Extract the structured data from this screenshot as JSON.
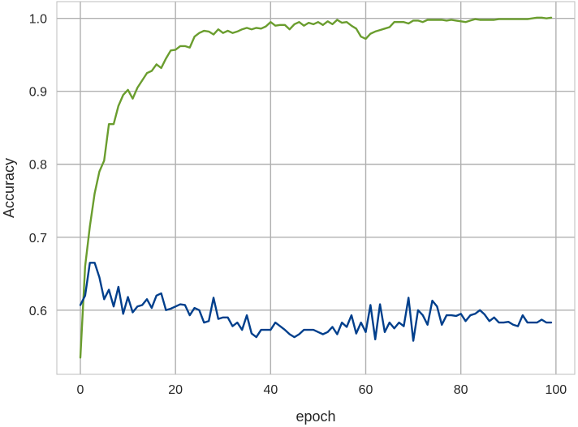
{
  "chart_data": {
    "type": "line",
    "title": "",
    "xlabel": "epoch",
    "ylabel": "Accuracy",
    "xlim": [
      -4.95,
      103.95
    ],
    "ylim": [
      0.512,
      1.023
    ],
    "grid": true,
    "x_ticks": [
      0,
      20,
      40,
      60,
      80,
      100
    ],
    "y_ticks": [
      0.6,
      0.7,
      0.8,
      0.9,
      1.0
    ],
    "x_tick_labels": [
      "0",
      "20",
      "40",
      "60",
      "80",
      "100"
    ],
    "y_tick_labels": [
      "0.6",
      "0.7",
      "0.8",
      "0.9",
      "1.0"
    ],
    "colors": {
      "series_0": "#6a9d2e",
      "series_1": "#003f8c",
      "grid": "#b0b0b0",
      "axes_edge": "#bdbdbd"
    },
    "series": [
      {
        "color": "#6a9d2e",
        "x": [
          0,
          1,
          2,
          3,
          4,
          5,
          6,
          7,
          8,
          9,
          10,
          11,
          12,
          13,
          14,
          15,
          16,
          17,
          18,
          19,
          20,
          21,
          22,
          23,
          24,
          25,
          26,
          27,
          28,
          29,
          30,
          31,
          32,
          33,
          34,
          35,
          36,
          37,
          38,
          39,
          40,
          41,
          42,
          43,
          44,
          45,
          46,
          47,
          48,
          49,
          50,
          51,
          52,
          53,
          54,
          55,
          56,
          57,
          58,
          59,
          60,
          61,
          62,
          63,
          64,
          65,
          66,
          67,
          68,
          69,
          70,
          71,
          72,
          73,
          74,
          75,
          76,
          77,
          78,
          79,
          80,
          81,
          82,
          83,
          84,
          85,
          86,
          87,
          88,
          89,
          90,
          91,
          92,
          93,
          94,
          95,
          96,
          97,
          98,
          99
        ],
        "values": [
          0.535,
          0.66,
          0.715,
          0.76,
          0.79,
          0.805,
          0.855,
          0.855,
          0.88,
          0.895,
          0.902,
          0.89,
          0.905,
          0.915,
          0.925,
          0.928,
          0.937,
          0.932,
          0.945,
          0.956,
          0.957,
          0.962,
          0.962,
          0.96,
          0.975,
          0.98,
          0.983,
          0.982,
          0.978,
          0.985,
          0.98,
          0.983,
          0.98,
          0.982,
          0.985,
          0.987,
          0.985,
          0.987,
          0.986,
          0.989,
          0.995,
          0.99,
          0.991,
          0.991,
          0.985,
          0.992,
          0.995,
          0.99,
          0.994,
          0.992,
          0.995,
          0.991,
          0.996,
          0.992,
          0.998,
          0.994,
          0.995,
          0.99,
          0.986,
          0.975,
          0.972,
          0.979,
          0.982,
          0.984,
          0.986,
          0.988,
          0.995,
          0.995,
          0.995,
          0.993,
          0.997,
          0.997,
          0.995,
          0.998,
          0.998,
          0.998,
          0.998,
          0.997,
          0.998,
          0.997,
          0.996,
          0.995,
          0.997,
          0.999,
          0.998,
          0.998,
          0.998,
          0.998,
          0.999,
          0.999,
          0.999,
          0.999,
          0.999,
          0.999,
          0.999,
          1.0,
          1.001,
          1.001,
          1.0,
          1.001
        ]
      },
      {
        "color": "#003f8c",
        "x": [
          0,
          1,
          2,
          3,
          4,
          5,
          6,
          7,
          8,
          9,
          10,
          11,
          12,
          13,
          14,
          15,
          16,
          17,
          18,
          19,
          20,
          21,
          22,
          23,
          24,
          25,
          26,
          27,
          28,
          29,
          30,
          31,
          32,
          33,
          34,
          35,
          36,
          37,
          38,
          39,
          40,
          41,
          42,
          43,
          44,
          45,
          46,
          47,
          48,
          49,
          50,
          51,
          52,
          53,
          54,
          55,
          56,
          57,
          58,
          59,
          60,
          61,
          62,
          63,
          64,
          65,
          66,
          67,
          68,
          69,
          70,
          71,
          72,
          73,
          74,
          75,
          76,
          77,
          78,
          79,
          80,
          81,
          82,
          83,
          84,
          85,
          86,
          87,
          88,
          89,
          90,
          91,
          92,
          93,
          94,
          95,
          96,
          97,
          98,
          99
        ],
        "values": [
          0.607,
          0.62,
          0.665,
          0.665,
          0.645,
          0.615,
          0.628,
          0.605,
          0.632,
          0.595,
          0.618,
          0.597,
          0.605,
          0.607,
          0.615,
          0.603,
          0.62,
          0.623,
          0.6,
          0.602,
          0.605,
          0.608,
          0.607,
          0.593,
          0.603,
          0.6,
          0.583,
          0.585,
          0.617,
          0.588,
          0.59,
          0.59,
          0.578,
          0.583,
          0.573,
          0.593,
          0.568,
          0.563,
          0.573,
          0.573,
          0.573,
          0.583,
          0.578,
          0.573,
          0.567,
          0.563,
          0.567,
          0.573,
          0.573,
          0.573,
          0.57,
          0.567,
          0.57,
          0.577,
          0.567,
          0.583,
          0.577,
          0.593,
          0.568,
          0.583,
          0.57,
          0.607,
          0.56,
          0.608,
          0.57,
          0.583,
          0.575,
          0.583,
          0.578,
          0.617,
          0.558,
          0.6,
          0.593,
          0.58,
          0.613,
          0.605,
          0.58,
          0.593,
          0.593,
          0.592,
          0.595,
          0.585,
          0.593,
          0.595,
          0.6,
          0.594,
          0.585,
          0.59,
          0.583,
          0.583,
          0.584,
          0.58,
          0.578,
          0.593,
          0.583,
          0.583,
          0.583,
          0.587,
          0.583,
          0.583
        ]
      }
    ]
  }
}
